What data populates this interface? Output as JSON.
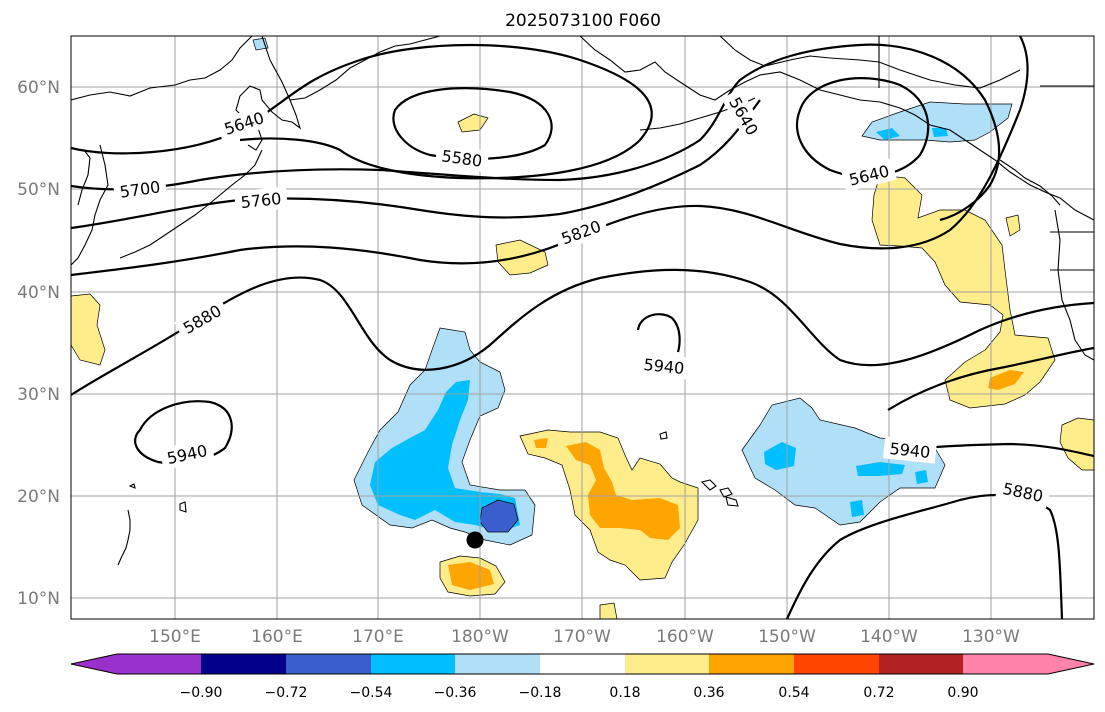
{
  "title": "2025073100 F060",
  "lat_labels": [
    "60°N",
    "50°N",
    "40°N",
    "30°N",
    "20°N",
    "10°N"
  ],
  "lon_labels": [
    "150°E",
    "160°E",
    "170°E",
    "180°W",
    "170°W",
    "160°W",
    "150°W",
    "140°W",
    "130°W"
  ],
  "contour_labels": [
    "5640",
    "5580",
    "5700",
    "5760",
    "5820",
    "5880",
    "5940",
    "5940",
    "5640",
    "5640",
    "5940",
    "5880"
  ],
  "colorbar": {
    "ticks": [
      "−0.90",
      "−0.72",
      "−0.54",
      "−0.36",
      "−0.18",
      "0.18",
      "0.36",
      "0.54",
      "0.72",
      "0.90"
    ],
    "colors": [
      "#9932cc",
      "#00008b",
      "#3a5fcd",
      "#00bfff",
      "#b0e0f8",
      "#ffffff",
      "#ffec8b",
      "#ffa500",
      "#ff4500",
      "#b22222",
      "#ff82ab"
    ]
  },
  "colors": {
    "frame": "#000000",
    "grid": "#a0a0a0",
    "neg1": "#b0e0f8",
    "neg2": "#00bfff",
    "neg3": "#3a5fcd",
    "pos1": "#ffec8b",
    "pos2": "#ffa500"
  }
}
